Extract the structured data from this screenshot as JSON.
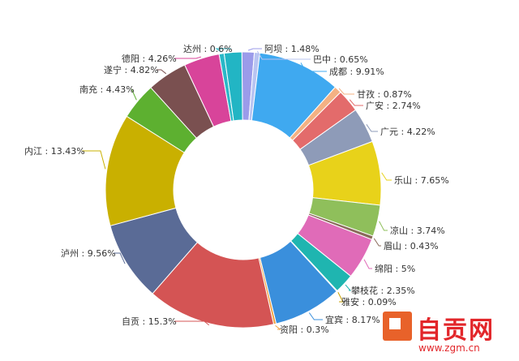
{
  "chart_data": {
    "type": "pie",
    "donut": true,
    "slices": [
      {
        "name": "阿坝",
        "label": "阿坝 : 1.48%",
        "value": 1.48,
        "color": "#9b9bea"
      },
      {
        "name": "巴中",
        "label": "巴中 : 0.65%",
        "value": 0.65,
        "color": "#b8c4f2"
      },
      {
        "name": "成都",
        "label": "成都 : 9.91%",
        "value": 9.91,
        "color": "#3fa9f0"
      },
      {
        "name": "甘孜",
        "label": "甘孜 : 0.87%",
        "value": 0.87,
        "color": "#f4b183"
      },
      {
        "name": "广安",
        "label": "广安 : 2.74%",
        "value": 2.74,
        "color": "#e36b6b"
      },
      {
        "name": "广元",
        "label": "广元 : 4.22%",
        "value": 4.22,
        "color": "#8e9bb8"
      },
      {
        "name": "乐山",
        "label": "乐山 : 7.65%",
        "value": 7.65,
        "color": "#e8d21a"
      },
      {
        "name": "凉山",
        "label": "凉山 : 3.74%",
        "value": 3.74,
        "color": "#8fbf5b"
      },
      {
        "name": "眉山",
        "label": "眉山 : 0.43%",
        "value": 0.43,
        "color": "#8a6a5a"
      },
      {
        "name": "绵阳",
        "label": "绵阳 : 5%",
        "value": 5.0,
        "color": "#e06bb8"
      },
      {
        "name": "攀枝花",
        "label": "攀枝花 : 2.35%",
        "value": 2.35,
        "color": "#1fb5b0"
      },
      {
        "name": "雅安",
        "label": "雅安 : 0.09%",
        "value": 0.09,
        "color": "#c8a000"
      },
      {
        "name": "宜宾",
        "label": "宜宾 : 8.17%",
        "value": 8.17,
        "color": "#3a8fdc"
      },
      {
        "name": "资阳",
        "label": "资阳 : 0.3%",
        "value": 0.3,
        "color": "#f0a040"
      },
      {
        "name": "自贡",
        "label": "自贡 : 15.3%",
        "value": 15.3,
        "color": "#d45454"
      },
      {
        "name": "泸州",
        "label": "泸州 : 9.56%",
        "value": 9.56,
        "color": "#5a6b96"
      },
      {
        "name": "内江",
        "label": "内江 : 13.43%",
        "value": 13.43,
        "color": "#c9b000"
      },
      {
        "name": "南充",
        "label": "南充 : 4.43%",
        "value": 4.43,
        "color": "#5db030"
      },
      {
        "name": "遂宁",
        "label": "遂宁 : 4.82%",
        "value": 4.82,
        "color": "#7a5050"
      },
      {
        "name": "德阳",
        "label": "德阳 : 4.26%",
        "value": 4.26,
        "color": "#d8449a"
      },
      {
        "name": "达州",
        "label": "达州 : 0.6%",
        "value": 0.6,
        "color": "#2ab8c8"
      },
      {
        "name": "",
        "label": "",
        "value": 2.1,
        "color": "#22b5c4"
      }
    ]
  },
  "watermark": {
    "name": "自贡网",
    "url": "www.zgm.cn"
  }
}
